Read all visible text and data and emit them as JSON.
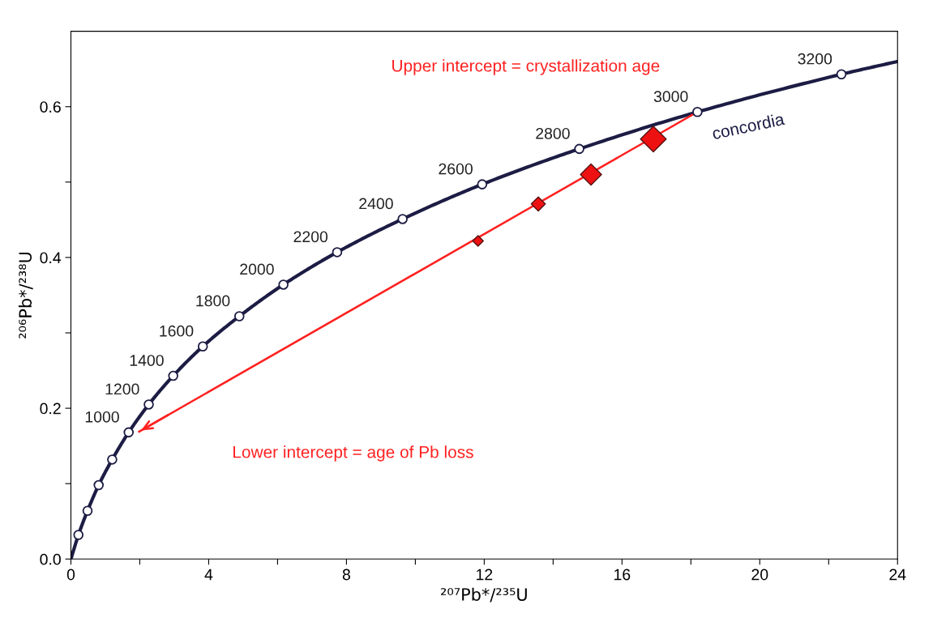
{
  "chart_data": {
    "type": "line",
    "xlabel": "²⁰⁷Pb*/²³⁵U",
    "ylabel": "²⁰⁶Pb*/²³⁸U",
    "xlim": [
      0,
      24
    ],
    "ylim": [
      0,
      0.7
    ],
    "xticks": [
      0,
      {
        "value": 2,
        "label": null
      },
      4,
      {
        "value": 6,
        "label": null
      },
      8,
      {
        "value": 10,
        "label": null
      },
      12,
      {
        "value": 14,
        "label": null
      },
      16,
      {
        "value": 18,
        "label": null
      },
      20,
      {
        "value": 22,
        "label": null
      },
      24
    ],
    "yticks": [
      {
        "value": 0,
        "label": "0.0"
      },
      {
        "value": 0.1,
        "label": null
      },
      0.2,
      {
        "value": 0.3,
        "label": null
      },
      0.4,
      {
        "value": 0.5,
        "label": null
      },
      0.6
    ],
    "grid": false,
    "legend": false,
    "series": [
      {
        "name": "concordia",
        "color": "#1c1c44",
        "marker": "none",
        "x": [
          0,
          0.218,
          0.483,
          0.806,
          1.199,
          1.677,
          2.26,
          2.97,
          3.83,
          4.89,
          6.17,
          7.73,
          9.63,
          11.94,
          14.76,
          18.19,
          22.37,
          24
        ],
        "values": [
          0,
          0.032,
          0.064,
          0.098,
          0.132,
          0.168,
          0.205,
          0.243,
          0.282,
          0.322,
          0.364,
          0.407,
          0.451,
          0.497,
          0.544,
          0.593,
          0.643,
          0.66
        ]
      },
      {
        "type": "scatter",
        "color": "#1c1c44",
        "marker": "circle",
        "x": [
          0.218,
          0.483,
          0.806,
          1.199,
          1.677,
          2.26,
          2.97,
          3.83,
          4.89,
          6.17,
          7.73,
          9.63,
          11.94,
          14.76,
          18.19,
          22.37
        ],
        "values": [
          0.032,
          0.064,
          0.098,
          0.132,
          0.168,
          0.205,
          0.243,
          0.282,
          0.322,
          0.364,
          0.407,
          0.451,
          0.497,
          0.544,
          0.593,
          0.643
        ]
      },
      {
        "type": "line",
        "color": "#ff2020",
        "marker": "none",
        "x": [
          18.19,
          1.98
        ],
        "values": [
          0.593,
          0.169
        ]
      },
      {
        "type": "bubble",
        "color": "#ee1111",
        "marker": "diamond",
        "x": [
          11.82,
          13.57,
          15.1,
          16.91
        ],
        "values": [
          0.422,
          0.471,
          0.51,
          0.557
        ],
        "sizes": [
          0.17,
          0.3,
          0.67,
          1
        ]
      }
    ],
    "annotations": [
      "Upper intercept = crystallization age",
      "Lower intercept = age of Pb loss",
      {
        "text": "1000",
        "x": 1.677,
        "y": 0.168
      },
      {
        "text": "1200",
        "x": 2.26,
        "y": 0.205
      },
      {
        "text": "1400",
        "x": 2.97,
        "y": 0.243
      },
      {
        "text": "1600",
        "x": 3.83,
        "y": 0.282
      },
      {
        "text": "1800",
        "x": 4.89,
        "y": 0.322
      },
      {
        "text": "2000",
        "x": 6.17,
        "y": 0.364
      },
      {
        "text": "2200",
        "x": 7.73,
        "y": 0.407
      },
      {
        "text": "2400",
        "x": 9.63,
        "y": 0.451
      },
      {
        "text": "2600",
        "x": 11.94,
        "y": 0.497
      },
      {
        "text": "2800",
        "x": 14.76,
        "y": 0.544
      },
      {
        "text": "3000",
        "x": 18.19,
        "y": 0.593
      },
      {
        "text": "3200",
        "x": 22.37,
        "y": 0.643
      }
    ]
  }
}
